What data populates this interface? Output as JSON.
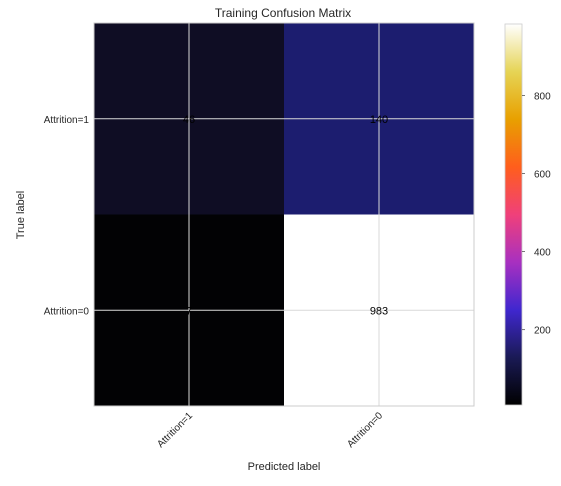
{
  "chart_data": {
    "type": "heatmap",
    "title": "Training Confusion Matrix",
    "xlabel": "Predicted label",
    "ylabel": "True label",
    "x_categories": [
      "Attrition=1",
      "Attrition=0"
    ],
    "y_categories": [
      "Attrition=1",
      "Attrition=0"
    ],
    "matrix": [
      [
        46,
        140
      ],
      [
        7,
        983
      ]
    ],
    "cell_labels": [
      [
        "46",
        "140"
      ],
      [
        "7",
        "983"
      ]
    ],
    "colormap": "CMRmap",
    "colorbar": {
      "range": [
        7,
        983
      ],
      "ticks": [
        200,
        400,
        600,
        800
      ],
      "tick_labels": [
        "200",
        "400",
        "600",
        "800"
      ]
    },
    "grid": true,
    "colors": {
      "cell_46": "#0f0d24",
      "cell_140": "#1c1d6f",
      "cell_7": "#020204",
      "cell_983": "#ffffff",
      "grid_line": "#d9d9d9"
    }
  }
}
